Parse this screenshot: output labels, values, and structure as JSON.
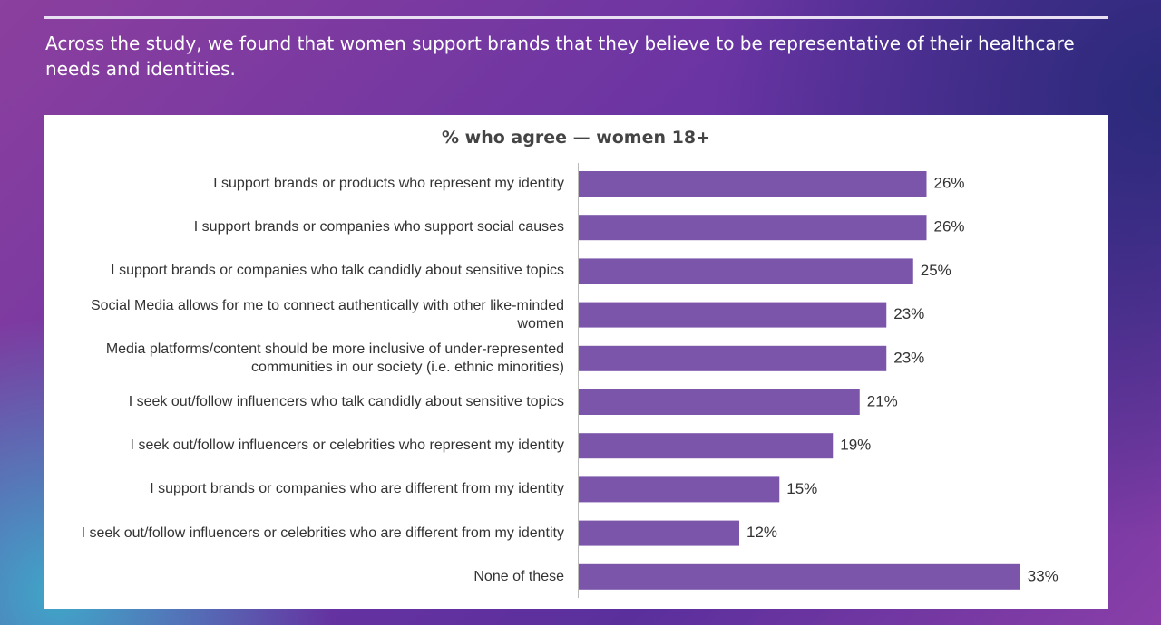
{
  "header": {
    "text": "Across the study, we found that women support brands that they believe to be representative of their healthcare needs and identities."
  },
  "chart_data": {
    "type": "bar",
    "orientation": "horizontal",
    "title": "% who agree — women 18+",
    "categories": [
      "I support brands or products who represent my identity",
      "I support brands or companies who support social causes",
      "I support brands or companies who talk candidly about sensitive topics",
      "Social Media allows for me to connect authentically with other like-minded women",
      "Media platforms/content should be more inclusive of under-represented communities in our society (i.e. ethnic minorities)",
      "I seek out/follow influencers who talk candidly about sensitive topics",
      "I seek out/follow influencers or celebrities who represent my identity",
      "I support brands or companies who are different from my identity",
      "I seek out/follow influencers or celebrities who are different from my identity",
      "None of these"
    ],
    "values": [
      26,
      26,
      25,
      23,
      23,
      21,
      19,
      15,
      12,
      33
    ],
    "value_labels": [
      "26%",
      "26%",
      "25%",
      "23%",
      "23%",
      "21%",
      "19%",
      "15%",
      "12%",
      "33%"
    ],
    "color": "#7b55aa"
  }
}
